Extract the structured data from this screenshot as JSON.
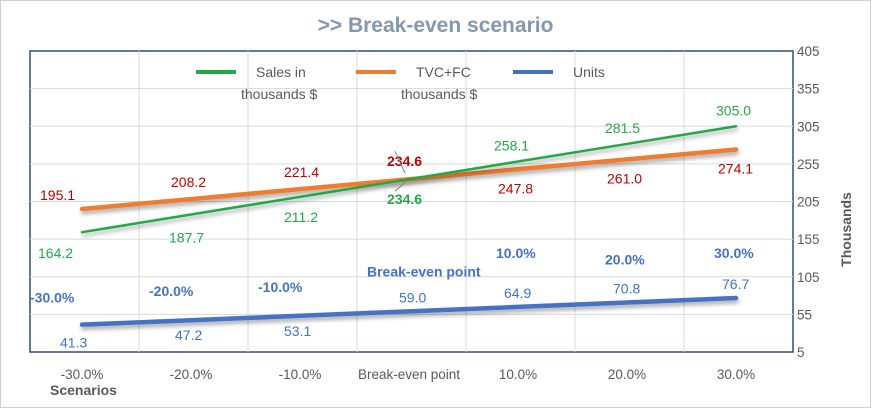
{
  "chart_data": {
    "type": "line",
    "title": ">> Break-even scenario",
    "xlabel": "Scenarios",
    "ylabel": "Thousands",
    "categories": [
      "-30.0%",
      "-20.0%",
      "-10.0%",
      "Break-even point",
      "10.0%",
      "20.0%",
      "30.0%"
    ],
    "ylim": [
      5,
      405
    ],
    "yticks": [
      5,
      55,
      105,
      155,
      205,
      255,
      305,
      355,
      405
    ],
    "grid": true,
    "series": [
      {
        "name": "Sales in thousands $",
        "color": "#22a845",
        "values": [
          164.2,
          187.7,
          211.2,
          234.6,
          258.1,
          281.5,
          305.0
        ],
        "labels": [
          "164.2",
          "187.7",
          "211.2",
          "234.6",
          "258.1",
          "281.5",
          "305.0"
        ]
      },
      {
        "name": "TVC+FC thousands $",
        "color": "#ed7d31",
        "values": [
          195.1,
          208.2,
          221.4,
          234.6,
          247.8,
          261.0,
          274.1
        ],
        "labels": [
          "195.1",
          "208.2",
          "221.4",
          "234.6",
          "247.8",
          "261.0",
          "274.1"
        ]
      },
      {
        "name": "Units",
        "color": "#4472c4",
        "values": [
          41.3,
          47.2,
          53.1,
          59.0,
          64.9,
          70.8,
          76.7
        ],
        "labels": [
          "41.3",
          "47.2",
          "53.1",
          "59.0",
          "64.9",
          "70.8",
          "76.7"
        ]
      }
    ],
    "units_scenario_labels": [
      "-30.0%",
      "-20.0%",
      "-10.0%",
      "Break-even point",
      "10.0%",
      "20.0%",
      "30.0%"
    ],
    "legend": {
      "position": "top",
      "items": [
        {
          "lines": [
            "Sales in",
            "thousands $"
          ],
          "color": "#22a845"
        },
        {
          "lines": [
            "TVC+FC",
            "thousands $"
          ],
          "color": "#ed7d31"
        },
        {
          "lines": [
            "Units"
          ],
          "color": "#4472c4"
        }
      ]
    },
    "label_colors": {
      "sales": "#22a845",
      "cost": "#c00000",
      "units": "#4472c4"
    }
  }
}
